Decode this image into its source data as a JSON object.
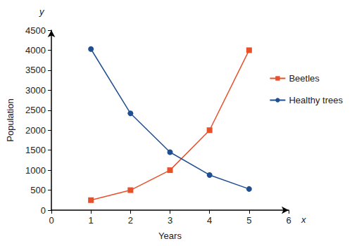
{
  "chart_data": {
    "type": "line",
    "x_label": "Years",
    "y_label": "Population",
    "axis_end_labels": {
      "x": "x",
      "y": "y"
    },
    "x": [
      1,
      2,
      3,
      4,
      5
    ],
    "series": [
      {
        "name": "Beetles",
        "color": "#e8502a",
        "marker": "square",
        "values": [
          250,
          500,
          1000,
          2000,
          4000
        ]
      },
      {
        "name": "Healthy trees",
        "color": "#1f4f8f",
        "marker": "circle",
        "values": [
          4030,
          2420,
          1450,
          880,
          530
        ]
      }
    ],
    "xlim": [
      0,
      6
    ],
    "xticks": [
      0,
      1,
      2,
      3,
      4,
      5,
      6
    ],
    "ylim": [
      0,
      4500
    ],
    "yticks": [
      0,
      500,
      1000,
      1500,
      2000,
      2500,
      3000,
      3500,
      4000,
      4500
    ],
    "grid": false,
    "legend": "right"
  }
}
